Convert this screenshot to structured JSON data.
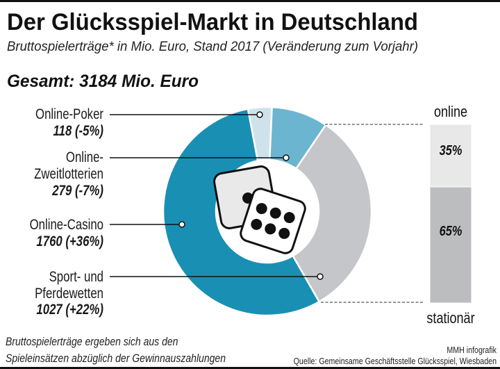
{
  "title": "Der Glücksspiel-Markt in Deutschland",
  "subtitle": "Bruttospielerträge* in Mio. Euro, Stand 2017 (Veränderung zum Vorjahr)",
  "total": "Gesamt: 3184 Mio. Euro",
  "chart_data": [
    {
      "type": "pie",
      "variant": "donut",
      "categories": [
        "Online-Poker",
        "Online-Zweitlotterien",
        "Sport- und Pferdewetten",
        "Online-Casino"
      ],
      "values": [
        118,
        279,
        1027,
        1760
      ],
      "changes": [
        "-5%",
        "-7%",
        "+22%",
        "+36%"
      ],
      "colors": [
        "#cfe2eb",
        "#6bb5d0",
        "#c5c6c9",
        "#1a8fb4"
      ],
      "center_icon": "dice-icon"
    },
    {
      "type": "bar",
      "stacked": true,
      "categories": [
        "online",
        "stationär"
      ],
      "values": [
        35,
        65
      ],
      "unit": "%",
      "colors": [
        "#e8e8e9",
        "#bcbdbf"
      ]
    }
  ],
  "labels": {
    "poker": {
      "lines": [
        "Online-Poker"
      ],
      "value": "118 (-5%)"
    },
    "zweit": {
      "lines": [
        "Online-",
        "Zweitlotterien"
      ],
      "value": "279 (-7%)"
    },
    "casino": {
      "lines": [
        "Online-Casino"
      ],
      "value": "1760 (+36%)"
    },
    "sport": {
      "lines": [
        "Sport- und",
        "Pferdewetten"
      ],
      "value": "1027 (+22%)"
    }
  },
  "bar": {
    "top_label": "online",
    "bottom_label": "stationär",
    "online_pct": "35%",
    "stationaer_pct": "65%"
  },
  "footnote": [
    "Bruttospielerträge ergeben sich aus den",
    "Spieleinsätzen abzüglich der Gewinnauszahlungen"
  ],
  "credit": "MMH infografik",
  "source": "Quelle: Gemeinsame Geschäftsstelle Glücksspiel, Wiesbaden"
}
